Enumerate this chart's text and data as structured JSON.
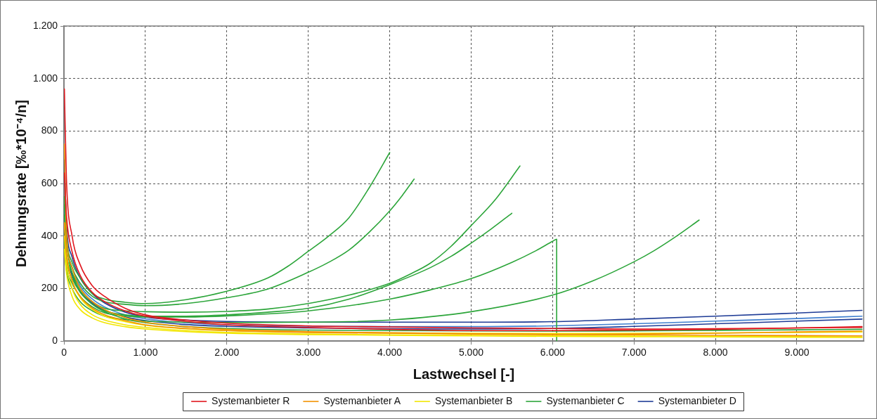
{
  "chart_data": {
    "type": "line",
    "xlabel": "Lastwechsel [-]",
    "ylabel": "Dehnungsrate [‰*10⁻⁴/n]",
    "x": [
      5,
      30,
      100,
      200,
      350,
      500,
      750,
      1000,
      1500,
      2000,
      3000,
      4000,
      5000,
      6000,
      7000,
      8000,
      9000,
      9800
    ],
    "xlim": [
      0,
      9820
    ],
    "xticks": [
      0,
      {
        "value": 1000,
        "label": "1.000"
      },
      {
        "value": 2000,
        "label": "2.000"
      },
      {
        "value": 3000,
        "label": "3.000"
      },
      {
        "value": 4000,
        "label": "4.000"
      },
      {
        "value": 5000,
        "label": "5.000"
      },
      {
        "value": 6000,
        "label": "6.000"
      },
      {
        "value": 7000,
        "label": "7.000"
      },
      {
        "value": 8000,
        "label": "8.000"
      },
      {
        "value": 9000,
        "label": "9.000"
      }
    ],
    "ylim": [
      0,
      1200
    ],
    "yticks": [
      0,
      200,
      400,
      600,
      800,
      {
        "value": 1000,
        "label": "1.000"
      },
      {
        "value": 1200,
        "label": "1.200"
      }
    ],
    "grid": true,
    "legend": "bottom",
    "series": [
      {
        "name": "Systemanbieter R",
        "color": "#e0161e",
        "values": [
          960,
          620,
          400,
          290,
          210,
          170,
          125,
          100,
          80,
          68,
          58,
          54,
          50,
          48,
          46,
          47,
          50,
          52
        ]
      },
      {
        "color": "#e0161e",
        "values": [
          640,
          480,
          340,
          250,
          185,
          150,
          115,
          95,
          75,
          62,
          52,
          45,
          40,
          40,
          42,
          45,
          50,
          55
        ]
      },
      {
        "name": "Systemanbieter A",
        "color": "#f39200",
        "values": [
          750,
          420,
          280,
          200,
          150,
          120,
          90,
          72,
          55,
          45,
          36,
          32,
          28,
          26,
          24,
          22,
          21,
          20
        ]
      },
      {
        "color": "#f39200",
        "values": [
          450,
          330,
          230,
          170,
          125,
          100,
          78,
          62,
          48,
          40,
          33,
          30,
          27,
          25,
          27,
          30,
          35,
          38
        ]
      },
      {
        "name": "Systemanbieter B",
        "color": "#f2e600",
        "values": [
          400,
          300,
          200,
          140,
          100,
          80,
          62,
          52,
          40,
          33,
          27,
          24,
          22,
          20,
          19,
          18,
          17,
          16
        ]
      },
      {
        "color": "#f2e600",
        "values": [
          350,
          260,
          170,
          120,
          88,
          70,
          55,
          46,
          36,
          30,
          25,
          22,
          20,
          18,
          17,
          16,
          15,
          14
        ]
      },
      {
        "color": "#f2e600",
        "values": [
          450,
          340,
          230,
          165,
          120,
          95,
          74,
          60,
          47,
          40,
          34,
          31,
          30,
          29,
          30,
          31,
          33,
          35
        ]
      },
      {
        "name": "Systemanbieter C",
        "color": "#2ca53a",
        "x": [
          5,
          30,
          100,
          200,
          350,
          500,
          750,
          1000,
          1500,
          2000,
          2500,
          2750,
          3000,
          3250,
          3500,
          3750,
          4000
        ],
        "values": [
          550,
          400,
          300,
          240,
          180,
          160,
          148,
          143,
          158,
          190,
          240,
          285,
          342,
          400,
          470,
          585,
          718
        ]
      },
      {
        "color": "#2ca53a",
        "x": [
          5,
          30,
          100,
          200,
          350,
          500,
          750,
          1000,
          1500,
          2000,
          2500,
          3000,
          3250,
          3500,
          3750,
          4000,
          4150,
          4300
        ],
        "values": [
          480,
          370,
          280,
          220,
          170,
          150,
          140,
          135,
          143,
          165,
          198,
          262,
          300,
          347,
          415,
          496,
          553,
          617
        ]
      },
      {
        "color": "#2ca53a",
        "x": [
          5,
          30,
          100,
          200,
          350,
          500,
          750,
          1000,
          1500,
          2000,
          2500,
          3000,
          3500,
          4000,
          4250,
          4500,
          4750,
          5000,
          5300,
          5600
        ],
        "values": [
          420,
          330,
          260,
          200,
          150,
          125,
          115,
          112,
          110,
          113,
          122,
          143,
          175,
          220,
          255,
          297,
          360,
          440,
          540,
          667
        ]
      },
      {
        "color": "#2ca53a",
        "x": [
          5,
          30,
          100,
          200,
          350,
          500,
          750,
          1000,
          1500,
          2000,
          2500,
          3000,
          3500,
          4000,
          4500,
          4750,
          5000,
          5250,
          5500
        ],
        "values": [
          400,
          310,
          240,
          185,
          140,
          115,
          100,
          95,
          95,
          100,
          110,
          125,
          160,
          215,
          280,
          322,
          373,
          428,
          487
        ]
      },
      {
        "color": "#2ca53a",
        "x": [
          5,
          30,
          100,
          200,
          350,
          500,
          750,
          1000,
          1500,
          2000,
          3000,
          4000,
          4500,
          5000,
          5500,
          5800,
          6000,
          6050,
          6050
        ],
        "values": [
          380,
          290,
          220,
          170,
          130,
          108,
          96,
          92,
          92,
          96,
          115,
          160,
          195,
          238,
          300,
          345,
          380,
          388,
          0
        ]
      },
      {
        "color": "#2ca53a",
        "x": [
          5,
          30,
          100,
          200,
          350,
          500,
          750,
          1000,
          1500,
          2000,
          3000,
          4000,
          5000,
          6000,
          6500,
          7000,
          7250,
          7500,
          7800
        ],
        "values": [
          350,
          270,
          200,
          150,
          115,
          95,
          82,
          76,
          72,
          71,
          72,
          80,
          112,
          175,
          230,
          302,
          345,
          395,
          461
        ]
      },
      {
        "color": "#2ca53a",
        "values": [
          520,
          380,
          260,
          190,
          140,
          112,
          85,
          70,
          55,
          48,
          42,
          40,
          39,
          38,
          39,
          41,
          43,
          45
        ]
      },
      {
        "name": "Systemanbieter D",
        "color": "#1f3c96",
        "values": [
          690,
          450,
          320,
          240,
          180,
          145,
          110,
          92,
          80,
          75,
          72,
          72,
          72,
          74,
          84,
          95,
          107,
          117
        ]
      },
      {
        "color": "#3f7fcf",
        "values": [
          500,
          380,
          280,
          210,
          160,
          130,
          100,
          85,
          70,
          62,
          57,
          55,
          55,
          58,
          66,
          76,
          86,
          95
        ]
      },
      {
        "color": "#1f3c96",
        "values": [
          420,
          330,
          250,
          190,
          145,
          118,
          92,
          78,
          63,
          56,
          50,
          47,
          46,
          48,
          56,
          66,
          76,
          84
        ]
      }
    ]
  }
}
